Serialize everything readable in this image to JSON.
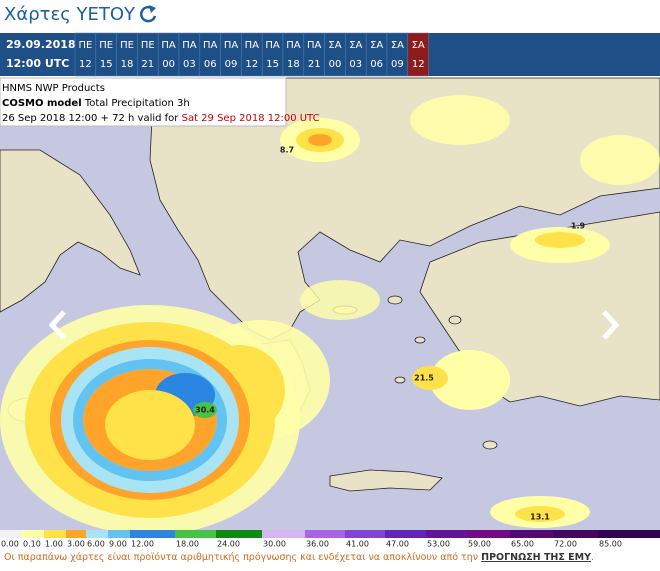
{
  "header": {
    "title": "Χάρτες ΥΕΤΟΥ"
  },
  "timebar": {
    "date": "29.09.2018",
    "time": "12:00 UTC",
    "selected": 16,
    "slots": [
      {
        "day": "ΠΕ",
        "hour": "12"
      },
      {
        "day": "ΠΕ",
        "hour": "15"
      },
      {
        "day": "ΠΕ",
        "hour": "18"
      },
      {
        "day": "ΠΕ",
        "hour": "21"
      },
      {
        "day": "ΠΑ",
        "hour": "00"
      },
      {
        "day": "ΠΑ",
        "hour": "03"
      },
      {
        "day": "ΠΑ",
        "hour": "06"
      },
      {
        "day": "ΠΑ",
        "hour": "09"
      },
      {
        "day": "ΠΑ",
        "hour": "12"
      },
      {
        "day": "ΠΑ",
        "hour": "15"
      },
      {
        "day": "ΠΑ",
        "hour": "18"
      },
      {
        "day": "ΠΑ",
        "hour": "21"
      },
      {
        "day": "ΣΑ",
        "hour": "00"
      },
      {
        "day": "ΣΑ",
        "hour": "03"
      },
      {
        "day": "ΣΑ",
        "hour": "06"
      },
      {
        "day": "ΣΑ",
        "hour": "09"
      },
      {
        "day": "ΣΑ",
        "hour": "12"
      }
    ]
  },
  "map": {
    "product": "HNMS NWP Products",
    "model": "COSMO model",
    "parameter": "Total Precipitation 3h",
    "run": "26 Sep 2018 12:00 + 72 h valid for",
    "valid": "Sat 29 Sep 2018 12:00 UTC",
    "maxima": [
      "8.7",
      "1.9",
      "21.5",
      "30.4",
      "13.1"
    ]
  },
  "legend": {
    "labels": [
      "0.00",
      "0.10",
      "1.00",
      "3.00",
      "6.00",
      "9.00",
      "12.00",
      "18.00",
      "24.00",
      "30.00",
      "36.00",
      "41.00",
      "47.00",
      "53.00",
      "59.00",
      "65.00",
      "72.00",
      "85.00"
    ],
    "colors": [
      "#f2f2f2",
      "#ffffa8",
      "#ffe24a",
      "#ffa42a",
      "#a8e4f4",
      "#62c2f2",
      "#2a86e0",
      "#46c246",
      "#118a11",
      "#d4b6f2",
      "#a864e2",
      "#8444d2",
      "#6424b4",
      "#621494",
      "#720a84",
      "#520a72",
      "#420862",
      "#320652"
    ]
  },
  "footer": {
    "text": "Οι παραπάνω χάρτες είναι προϊόντα αριθμητικής πρόγνωσης και ενδέχεται να αποκλίνουν από την",
    "link": "ΠΡΟΓΝΩΣΗ ΤΗΣ ΕΜΥ",
    "end": "."
  }
}
